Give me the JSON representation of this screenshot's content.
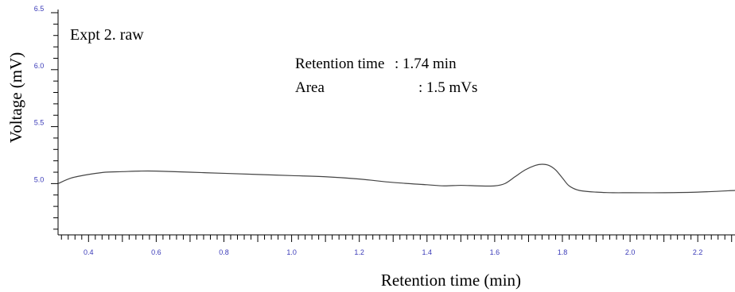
{
  "chart_data": {
    "type": "line",
    "title": "",
    "plot_label": "Expt 2. raw",
    "xlabel": "Retention time (min)",
    "ylabel": "Voltage (mV)",
    "xlim": [
      0.31,
      2.31
    ],
    "ylim": [
      4.55,
      6.5
    ],
    "x_ticks": [
      "0.4",
      "0.6",
      "0.8",
      "1.0",
      "1.2",
      "1.4",
      "1.6",
      "1.8",
      "2.0",
      "2.2"
    ],
    "y_ticks": [
      "5.0",
      "5.5",
      "6.0",
      "6.5"
    ],
    "annotation": {
      "retention_label": "Retention time",
      "retention_value": ": 1.74 min",
      "area_label": "Area",
      "area_value": ": 1.5 mVs"
    },
    "tick_color": "#3a3ab8",
    "line_color": "#444444",
    "series": [
      {
        "name": "",
        "x": [
          0.31,
          0.35,
          0.4,
          0.45,
          0.5,
          0.55,
          0.6,
          0.7,
          0.8,
          0.9,
          1.0,
          1.1,
          1.2,
          1.3,
          1.4,
          1.45,
          1.5,
          1.55,
          1.6,
          1.63,
          1.66,
          1.69,
          1.72,
          1.74,
          1.76,
          1.78,
          1.8,
          1.82,
          1.85,
          1.9,
          1.95,
          2.0,
          2.1,
          2.2,
          2.31
        ],
        "y": [
          5.0,
          5.05,
          5.08,
          5.1,
          5.105,
          5.11,
          5.11,
          5.1,
          5.09,
          5.08,
          5.07,
          5.06,
          5.04,
          5.01,
          4.99,
          4.98,
          4.985,
          4.98,
          4.98,
          5.0,
          5.06,
          5.12,
          5.16,
          5.17,
          5.16,
          5.12,
          5.05,
          4.98,
          4.94,
          4.925,
          4.92,
          4.92,
          4.92,
          4.925,
          4.94
        ]
      }
    ]
  }
}
